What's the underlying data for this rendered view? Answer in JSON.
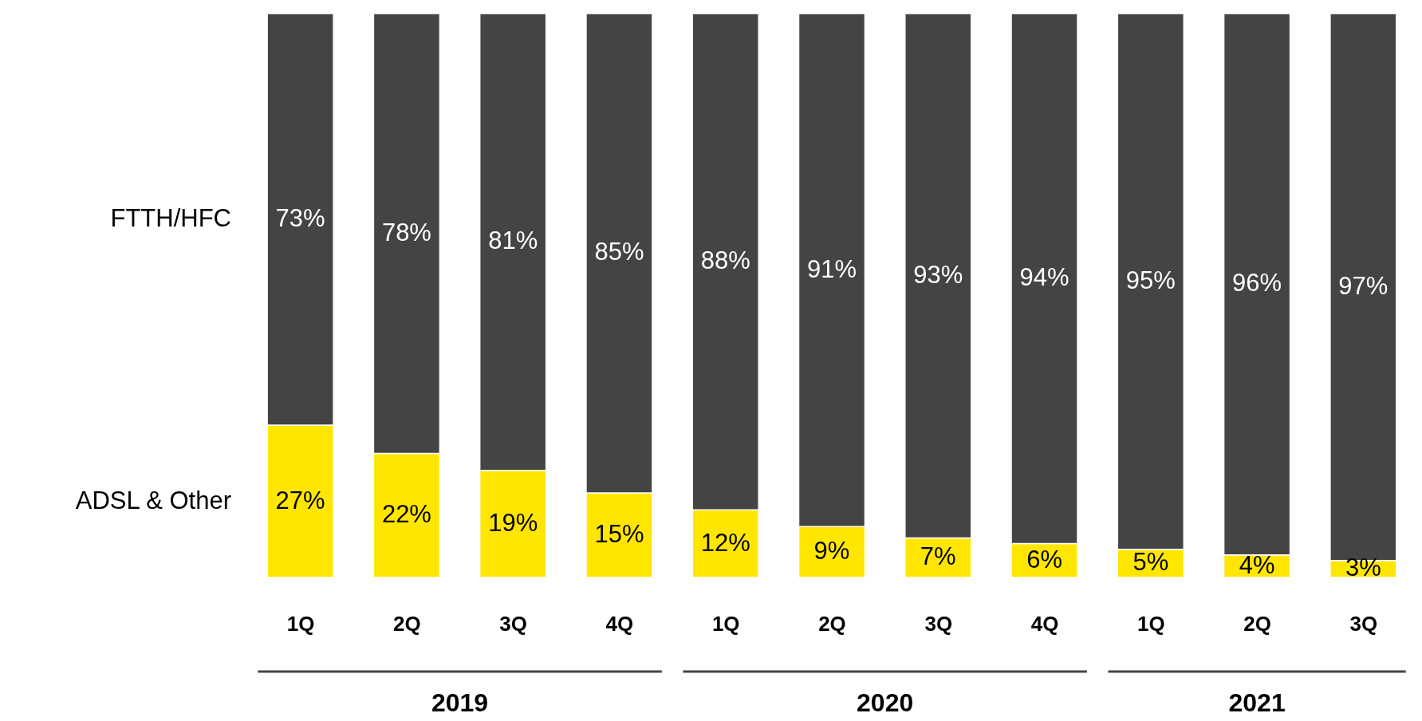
{
  "chart_data": {
    "type": "bar",
    "stacked": true,
    "categories": [
      "1Q",
      "2Q",
      "3Q",
      "4Q",
      "1Q",
      "2Q",
      "3Q",
      "4Q",
      "1Q",
      "2Q",
      "3Q"
    ],
    "series": [
      {
        "name": "ADSL & Other",
        "color": "#ffe600",
        "values": [
          27,
          22,
          19,
          15,
          12,
          9,
          7,
          6,
          5,
          4,
          3
        ],
        "value_labels": [
          "27%",
          "22%",
          "19%",
          "15%",
          "12%",
          "9%",
          "7%",
          "6%",
          "5%",
          "4%",
          "3%"
        ]
      },
      {
        "name": "FTTH/HFC",
        "color": "#444444",
        "values": [
          73,
          78,
          81,
          85,
          88,
          91,
          93,
          94,
          95,
          96,
          97
        ],
        "value_labels": [
          "73%",
          "78%",
          "81%",
          "85%",
          "88%",
          "91%",
          "93%",
          "94%",
          "95%",
          "96%",
          "97%"
        ]
      }
    ],
    "annotations": [
      "2019",
      "2020",
      "2021"
    ]
  }
}
